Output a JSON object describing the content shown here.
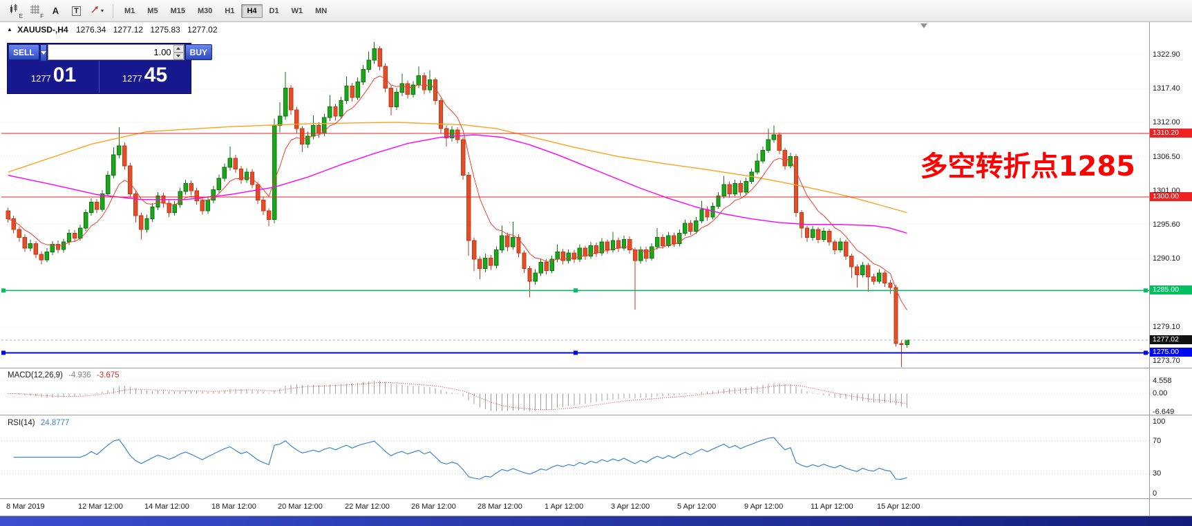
{
  "toolbar": {
    "tools": [
      {
        "name": "chart-mode",
        "label": "E"
      },
      {
        "name": "grid-mode",
        "label": "F"
      },
      {
        "name": "cursor",
        "label": "A"
      },
      {
        "name": "text-tool",
        "label": "T"
      },
      {
        "name": "shapes",
        "label": "▾"
      }
    ],
    "timeframes": [
      "M1",
      "M5",
      "M15",
      "M30",
      "H1",
      "H4",
      "D1",
      "W1",
      "MN"
    ],
    "active_timeframe": "H4"
  },
  "symbol_info": {
    "marker": "▲",
    "symbol": "XAUUSD-,H4",
    "open": "1276.34",
    "high": "1277.12",
    "low": "1275.83",
    "close": "1277.02"
  },
  "trade_panel": {
    "sell_label": "SELL",
    "buy_label": "BUY",
    "volume": "1.00",
    "sell_price_base": "1277",
    "sell_price_pips": "01",
    "buy_price_base": "1277",
    "buy_price_pips": "45"
  },
  "annotation": {
    "text": "多空转折点1285",
    "color": "#FF0000"
  },
  "price_axis": {
    "ticks": [
      "1322.90",
      "1317.40",
      "1312.00",
      "1306.50",
      "1301.00",
      "1295.60",
      "1290.10",
      "1279.10",
      "1273.70"
    ]
  },
  "chart_data": {
    "type": "candlestick",
    "symbol": "XAUUSD",
    "timeframe": "H4",
    "colors": {
      "up": "#18a818",
      "up_border": "#0f7410",
      "down": "#e44d26",
      "down_border": "#c23a1c"
    },
    "candles": [
      [
        1297.8,
        1298.3,
        1295.9,
        1296.5
      ],
      [
        1296.5,
        1297.0,
        1294.2,
        1294.8
      ],
      [
        1294.8,
        1295.3,
        1292.8,
        1293.5
      ],
      [
        1293.5,
        1294.0,
        1291.2,
        1291.8
      ],
      [
        1291.8,
        1293.2,
        1291.3,
        1292.5
      ],
      [
        1292.5,
        1292.9,
        1290.2,
        1290.8
      ],
      [
        1290.8,
        1291.3,
        1289.2,
        1289.9
      ],
      [
        1289.9,
        1291.8,
        1289.5,
        1291.2
      ],
      [
        1291.2,
        1292.9,
        1290.7,
        1292.4
      ],
      [
        1292.4,
        1293.0,
        1291.0,
        1291.6
      ],
      [
        1291.6,
        1293.3,
        1291.1,
        1292.8
      ],
      [
        1292.8,
        1294.8,
        1292.3,
        1294.2
      ],
      [
        1294.2,
        1294.7,
        1292.8,
        1293.4
      ],
      [
        1293.4,
        1295.6,
        1293.0,
        1295.0
      ],
      [
        1295.0,
        1298.0,
        1294.6,
        1297.5
      ],
      [
        1297.5,
        1299.8,
        1297.0,
        1299.2
      ],
      [
        1299.2,
        1299.7,
        1297.4,
        1298.0
      ],
      [
        1298.0,
        1301.1,
        1297.6,
        1300.5
      ],
      [
        1300.5,
        1304.2,
        1300.1,
        1303.5
      ],
      [
        1303.5,
        1308.0,
        1303.0,
        1306.8
      ],
      [
        1306.8,
        1311.2,
        1306.2,
        1308.2
      ],
      [
        1308.2,
        1308.8,
        1304.4,
        1305.0
      ],
      [
        1305.0,
        1305.5,
        1299.9,
        1300.5
      ],
      [
        1300.5,
        1301.0,
        1295.9,
        1297.0
      ],
      [
        1297.0,
        1297.5,
        1293.2,
        1294.8
      ],
      [
        1294.8,
        1297.2,
        1294.3,
        1296.5
      ],
      [
        1296.5,
        1299.0,
        1296.0,
        1298.4
      ],
      [
        1298.4,
        1300.8,
        1297.9,
        1300.2
      ],
      [
        1300.2,
        1300.7,
        1298.3,
        1299.0
      ],
      [
        1299.0,
        1299.5,
        1296.8,
        1297.5
      ],
      [
        1297.5,
        1299.4,
        1297.0,
        1298.8
      ],
      [
        1298.8,
        1301.5,
        1298.3,
        1300.9
      ],
      [
        1300.9,
        1302.8,
        1300.4,
        1302.2
      ],
      [
        1302.2,
        1302.7,
        1300.3,
        1301.0
      ],
      [
        1301.0,
        1301.5,
        1298.8,
        1299.4
      ],
      [
        1299.4,
        1299.9,
        1297.2,
        1297.8
      ],
      [
        1297.8,
        1300.1,
        1297.3,
        1299.5
      ],
      [
        1299.5,
        1301.8,
        1299.0,
        1301.2
      ],
      [
        1301.2,
        1303.6,
        1300.7,
        1303.0
      ],
      [
        1303.0,
        1305.4,
        1302.5,
        1304.8
      ],
      [
        1304.8,
        1308.1,
        1304.3,
        1306.2
      ],
      [
        1306.2,
        1306.8,
        1303.9,
        1304.5
      ],
      [
        1304.5,
        1305.0,
        1302.1,
        1302.8
      ],
      [
        1302.8,
        1304.6,
        1302.3,
        1304.0
      ],
      [
        1304.0,
        1304.5,
        1301.4,
        1302.0
      ],
      [
        1302.0,
        1302.4,
        1298.9,
        1299.5
      ],
      [
        1299.5,
        1300.0,
        1297.1,
        1297.8
      ],
      [
        1297.8,
        1298.2,
        1295.3,
        1296.4
      ],
      [
        1296.4,
        1312.6,
        1295.8,
        1311.5
      ],
      [
        1311.5,
        1315.2,
        1310.4,
        1313.0
      ],
      [
        1313.0,
        1320.1,
        1312.4,
        1317.5
      ],
      [
        1317.5,
        1318.0,
        1313.2,
        1314.0
      ],
      [
        1314.0,
        1314.5,
        1310.2,
        1311.0
      ],
      [
        1311.0,
        1311.4,
        1307.2,
        1308.5
      ],
      [
        1308.5,
        1310.5,
        1307.9,
        1309.8
      ],
      [
        1309.8,
        1313.1,
        1309.3,
        1311.5
      ],
      [
        1311.5,
        1312.0,
        1309.5,
        1310.2
      ],
      [
        1310.2,
        1313.4,
        1309.8,
        1312.8
      ],
      [
        1312.8,
        1316.4,
        1312.2,
        1314.5
      ],
      [
        1314.5,
        1315.0,
        1312.3,
        1313.0
      ],
      [
        1313.0,
        1316.1,
        1312.6,
        1315.5
      ],
      [
        1315.5,
        1319.4,
        1315.0,
        1317.8
      ],
      [
        1317.8,
        1318.3,
        1315.3,
        1316.0
      ],
      [
        1316.0,
        1319.2,
        1315.6,
        1318.5
      ],
      [
        1318.5,
        1321.2,
        1318.0,
        1320.5
      ],
      [
        1320.5,
        1323.4,
        1320.0,
        1322.0
      ],
      [
        1322.0,
        1324.9,
        1321.4,
        1323.8
      ],
      [
        1323.8,
        1324.2,
        1320.3,
        1321.0
      ],
      [
        1321.0,
        1321.5,
        1316.8,
        1317.5
      ],
      [
        1317.5,
        1318.0,
        1313.1,
        1314.5
      ],
      [
        1314.5,
        1317.5,
        1314.0,
        1316.8
      ],
      [
        1316.8,
        1319.8,
        1316.2,
        1318.2
      ],
      [
        1318.2,
        1318.7,
        1315.8,
        1316.5
      ],
      [
        1316.5,
        1318.6,
        1316.0,
        1318.0
      ],
      [
        1318.0,
        1321.0,
        1317.5,
        1319.5
      ],
      [
        1319.5,
        1320.0,
        1316.5,
        1317.2
      ],
      [
        1317.2,
        1320.4,
        1316.7,
        1318.8
      ],
      [
        1318.8,
        1319.2,
        1314.8,
        1315.5
      ],
      [
        1315.5,
        1315.9,
        1310.3,
        1311.0
      ],
      [
        1311.0,
        1311.5,
        1308.1,
        1309.5
      ],
      [
        1309.5,
        1311.4,
        1308.9,
        1310.8
      ],
      [
        1310.8,
        1311.2,
        1308.6,
        1309.2
      ],
      [
        1309.2,
        1309.6,
        1302.8,
        1303.5
      ],
      [
        1303.5,
        1304.0,
        1290.6,
        1293.0
      ],
      [
        1293.0,
        1293.5,
        1288.1,
        1290.0
      ],
      [
        1290.0,
        1290.5,
        1286.8,
        1288.5
      ],
      [
        1288.5,
        1290.9,
        1287.9,
        1290.2
      ],
      [
        1290.2,
        1290.7,
        1288.3,
        1289.0
      ],
      [
        1289.0,
        1292.1,
        1288.5,
        1291.5
      ],
      [
        1291.5,
        1295.4,
        1291.0,
        1293.8
      ],
      [
        1293.8,
        1294.3,
        1291.3,
        1292.0
      ],
      [
        1292.0,
        1296.0,
        1291.6,
        1293.5
      ],
      [
        1293.5,
        1294.0,
        1290.3,
        1291.0
      ],
      [
        1291.0,
        1291.4,
        1287.8,
        1288.5
      ],
      [
        1288.5,
        1288.9,
        1283.9,
        1286.5
      ],
      [
        1286.5,
        1288.4,
        1285.9,
        1287.8
      ],
      [
        1287.8,
        1290.1,
        1287.3,
        1289.5
      ],
      [
        1289.5,
        1290.0,
        1287.6,
        1288.2
      ],
      [
        1288.2,
        1290.6,
        1287.8,
        1290.0
      ],
      [
        1290.0,
        1292.4,
        1289.5,
        1291.2
      ],
      [
        1291.2,
        1291.7,
        1289.2,
        1289.8
      ],
      [
        1289.8,
        1291.6,
        1289.3,
        1291.0
      ],
      [
        1291.0,
        1291.5,
        1289.4,
        1290.0
      ],
      [
        1290.0,
        1292.4,
        1289.6,
        1291.8
      ],
      [
        1291.8,
        1292.2,
        1289.9,
        1290.5
      ],
      [
        1290.5,
        1292.8,
        1290.1,
        1292.2
      ],
      [
        1292.2,
        1292.7,
        1290.4,
        1291.0
      ],
      [
        1291.0,
        1293.4,
        1290.6,
        1292.8
      ],
      [
        1292.8,
        1293.2,
        1290.9,
        1291.5
      ],
      [
        1291.5,
        1294.4,
        1291.1,
        1293.0
      ],
      [
        1293.0,
        1293.5,
        1291.2,
        1291.8
      ],
      [
        1291.8,
        1293.8,
        1291.4,
        1293.2
      ],
      [
        1293.2,
        1293.7,
        1290.9,
        1291.5
      ],
      [
        1291.5,
        1291.9,
        1281.9,
        1289.8
      ],
      [
        1289.8,
        1292.1,
        1289.3,
        1291.5
      ],
      [
        1291.5,
        1292.0,
        1289.6,
        1290.2
      ],
      [
        1290.2,
        1292.6,
        1289.8,
        1292.0
      ],
      [
        1292.0,
        1295.0,
        1291.6,
        1293.5
      ],
      [
        1293.5,
        1294.0,
        1291.7,
        1292.2
      ],
      [
        1292.2,
        1294.4,
        1291.9,
        1293.8
      ],
      [
        1293.8,
        1294.3,
        1292.0,
        1292.5
      ],
      [
        1292.5,
        1294.8,
        1292.1,
        1294.2
      ],
      [
        1294.2,
        1296.4,
        1293.8,
        1295.8
      ],
      [
        1295.8,
        1296.3,
        1293.9,
        1294.5
      ],
      [
        1294.5,
        1296.8,
        1294.1,
        1296.2
      ],
      [
        1296.2,
        1299.4,
        1295.8,
        1298.0
      ],
      [
        1298.0,
        1298.5,
        1296.2,
        1296.8
      ],
      [
        1296.8,
        1299.1,
        1296.4,
        1298.5
      ],
      [
        1298.5,
        1300.8,
        1298.1,
        1300.2
      ],
      [
        1300.2,
        1303.4,
        1299.8,
        1302.0
      ],
      [
        1302.0,
        1302.5,
        1299.9,
        1300.5
      ],
      [
        1300.5,
        1302.8,
        1300.1,
        1302.2
      ],
      [
        1302.2,
        1302.7,
        1300.2,
        1300.8
      ],
      [
        1300.8,
        1303.1,
        1300.4,
        1302.5
      ],
      [
        1302.5,
        1304.6,
        1302.1,
        1304.0
      ],
      [
        1304.0,
        1307.0,
        1303.6,
        1305.8
      ],
      [
        1305.8,
        1308.1,
        1305.4,
        1307.5
      ],
      [
        1307.5,
        1311.0,
        1307.1,
        1309.2
      ],
      [
        1309.2,
        1311.5,
        1308.7,
        1310.0
      ],
      [
        1310.0,
        1310.4,
        1306.9,
        1307.5
      ],
      [
        1307.5,
        1307.9,
        1304.4,
        1305.0
      ],
      [
        1305.0,
        1307.1,
        1304.6,
        1306.5
      ],
      [
        1306.5,
        1306.9,
        1296.8,
        1297.5
      ],
      [
        1297.5,
        1297.9,
        1293.4,
        1295.0
      ],
      [
        1295.0,
        1295.4,
        1292.8,
        1293.5
      ],
      [
        1293.5,
        1295.4,
        1293.0,
        1294.8
      ],
      [
        1294.8,
        1295.2,
        1292.6,
        1293.2
      ],
      [
        1293.2,
        1295.1,
        1292.8,
        1294.5
      ],
      [
        1294.5,
        1294.9,
        1292.2,
        1292.8
      ],
      [
        1292.8,
        1293.2,
        1290.8,
        1291.5
      ],
      [
        1291.5,
        1293.4,
        1291.1,
        1292.8
      ],
      [
        1292.8,
        1293.2,
        1289.9,
        1290.5
      ],
      [
        1290.5,
        1290.9,
        1287.0,
        1288.8
      ],
      [
        1288.8,
        1289.2,
        1285.5,
        1287.5
      ],
      [
        1287.5,
        1289.6,
        1287.1,
        1289.0
      ],
      [
        1289.0,
        1289.4,
        1284.8,
        1287.2
      ],
      [
        1287.2,
        1287.7,
        1285.9,
        1286.5
      ],
      [
        1286.5,
        1288.4,
        1286.1,
        1287.8
      ],
      [
        1287.8,
        1288.2,
        1285.6,
        1286.2
      ],
      [
        1286.2,
        1286.7,
        1284.5,
        1285.5
      ],
      [
        1285.5,
        1285.9,
        1276.0,
        1276.5
      ],
      [
        1276.5,
        1277.0,
        1272.7,
        1276.34
      ],
      [
        1276.34,
        1277.12,
        1275.83,
        1277.02
      ]
    ],
    "slow_ma": {
      "name": "slow-ma",
      "color": "#ffa21f",
      "points": [
        [
          0,
          1304.0
        ],
        [
          15,
          1308.5
        ],
        [
          25,
          1310.5
        ],
        [
          40,
          1311.3
        ],
        [
          55,
          1311.8
        ],
        [
          70,
          1312.0
        ],
        [
          82,
          1311.6
        ],
        [
          88,
          1311.0
        ],
        [
          95,
          1309.5
        ],
        [
          102,
          1308.0
        ],
        [
          110,
          1306.5
        ],
        [
          118,
          1305.4
        ],
        [
          126,
          1304.4
        ],
        [
          134,
          1303.3
        ],
        [
          140,
          1302.3
        ],
        [
          146,
          1301.2
        ],
        [
          151,
          1300.2
        ],
        [
          156,
          1299.0
        ],
        [
          162,
          1297.5
        ]
      ]
    },
    "medium_ma": {
      "name": "medium-ma",
      "color": "#ff00ff",
      "points": [
        [
          0,
          1303.5
        ],
        [
          8,
          1302.0
        ],
        [
          16,
          1300.4
        ],
        [
          24,
          1299.6
        ],
        [
          32,
          1299.6
        ],
        [
          40,
          1300.4
        ],
        [
          48,
          1301.6
        ],
        [
          54,
          1303.2
        ],
        [
          60,
          1305.2
        ],
        [
          66,
          1307.0
        ],
        [
          72,
          1308.6
        ],
        [
          78,
          1309.6
        ],
        [
          84,
          1310.0
        ],
        [
          89,
          1309.6
        ],
        [
          94,
          1308.4
        ],
        [
          99,
          1306.8
        ],
        [
          104,
          1305.0
        ],
        [
          109,
          1303.2
        ],
        [
          114,
          1301.4
        ],
        [
          119,
          1299.8
        ],
        [
          124,
          1298.4
        ],
        [
          129,
          1297.3
        ],
        [
          134,
          1296.5
        ],
        [
          139,
          1295.9
        ],
        [
          144,
          1295.6
        ],
        [
          150,
          1295.6
        ],
        [
          156,
          1295.4
        ],
        [
          159,
          1295.0
        ],
        [
          162,
          1294.2
        ]
      ]
    },
    "fast_ma": {
      "name": "fast-ma",
      "color": "#ef3e2e",
      "period": 8
    },
    "hlines": [
      {
        "price": 1310.2,
        "label": "1310.20",
        "color": "#ee2222",
        "width": 1,
        "handles": false
      },
      {
        "price": 1300.0,
        "label": "1300.00",
        "color": "#ee2222",
        "width": 1,
        "handles": false
      },
      {
        "price": 1285.0,
        "label": "1285.00",
        "color": "#00c060",
        "width": 1.5,
        "handles": true
      },
      {
        "price": 1275.0,
        "label": "1275.00",
        "color": "#0008ee",
        "width": 2,
        "handles": true
      }
    ],
    "current_price": {
      "price": 1277.02,
      "label": "1277.02",
      "bg": "#111111"
    }
  },
  "macd": {
    "label": "MACD(12,26,9)",
    "value_main": "-4.936",
    "value_signal": "-3.675",
    "ticks": [
      "4.558",
      "0.00",
      "-6.649"
    ],
    "tick_values": [
      4.558,
      0,
      -6.649
    ],
    "histogram_color": "#9c9c9c",
    "signal_color": "#e0392b",
    "fast": 12,
    "slow": 26,
    "signal": 9
  },
  "rsi": {
    "label": "RSI(14)",
    "value": "24.8777",
    "period": 14,
    "color": "#3d85cc",
    "ticks": [
      "100",
      "70",
      "30",
      "0"
    ],
    "tick_values": [
      100,
      70,
      30,
      0
    ],
    "levels": [
      70,
      30
    ]
  },
  "time_axis": {
    "labels": [
      {
        "text": "8 Mar 2019",
        "i": 0
      },
      {
        "text": "12 Mar 12:00",
        "i": 13
      },
      {
        "text": "14 Mar 12:00",
        "i": 25
      },
      {
        "text": "18 Mar 12:00",
        "i": 37
      },
      {
        "text": "20 Mar 12:00",
        "i": 49
      },
      {
        "text": "22 Mar 12:00",
        "i": 61
      },
      {
        "text": "26 Mar 12:00",
        "i": 73
      },
      {
        "text": "28 Mar 12:00",
        "i": 85
      },
      {
        "text": "1 Apr 12:00",
        "i": 97
      },
      {
        "text": "3 Apr 12:00",
        "i": 109
      },
      {
        "text": "5 Apr 12:00",
        "i": 121
      },
      {
        "text": "9 Apr 12:00",
        "i": 133
      },
      {
        "text": "11 Apr 12:00",
        "i": 145
      },
      {
        "text": "15 Apr 12:00",
        "i": 157
      }
    ]
  }
}
